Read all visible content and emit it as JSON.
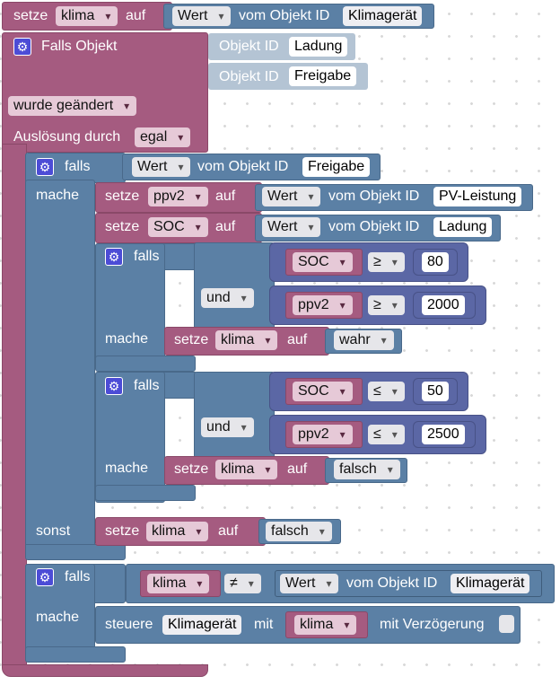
{
  "labels": {
    "setze": "setze",
    "auf": "auf",
    "vom_objekt_id": "vom Objekt ID",
    "objekt_id": "Objekt ID",
    "falls_objekt": "Falls Objekt",
    "wurde_geaendert": "wurde geändert",
    "ausloesung_durch": "Auslösung durch",
    "egal": "egal",
    "falls": "falls",
    "mache": "mache",
    "sonst": "sonst",
    "und": "und",
    "steuere": "steuere",
    "mit": "mit",
    "mit_verzoegerung": "mit Verzögerung"
  },
  "variables": {
    "klima": "klima",
    "ppv2": "ppv2",
    "soc": "SOC"
  },
  "properties": {
    "wert": "Wert"
  },
  "object_ids": {
    "klimageraet": "Klimagerät",
    "ladung": "Ladung",
    "freigabe": "Freigabe",
    "pv_leistung": "PV-Leistung"
  },
  "operators": {
    "gte": "≥",
    "lte": "≤",
    "neq": "≠"
  },
  "numbers": {
    "soc_high": "80",
    "ppv2_high": "2000",
    "soc_low": "50",
    "ppv2_low": "2500"
  },
  "booleans": {
    "wahr": "wahr",
    "falsch": "falsch"
  },
  "icons": {
    "gear": "⚙"
  },
  "colors": {
    "variable_block": "#a55b80",
    "logic_block": "#5b80a5",
    "math_block": "#5b67a5",
    "gear_icon": "#4c4cd6"
  }
}
